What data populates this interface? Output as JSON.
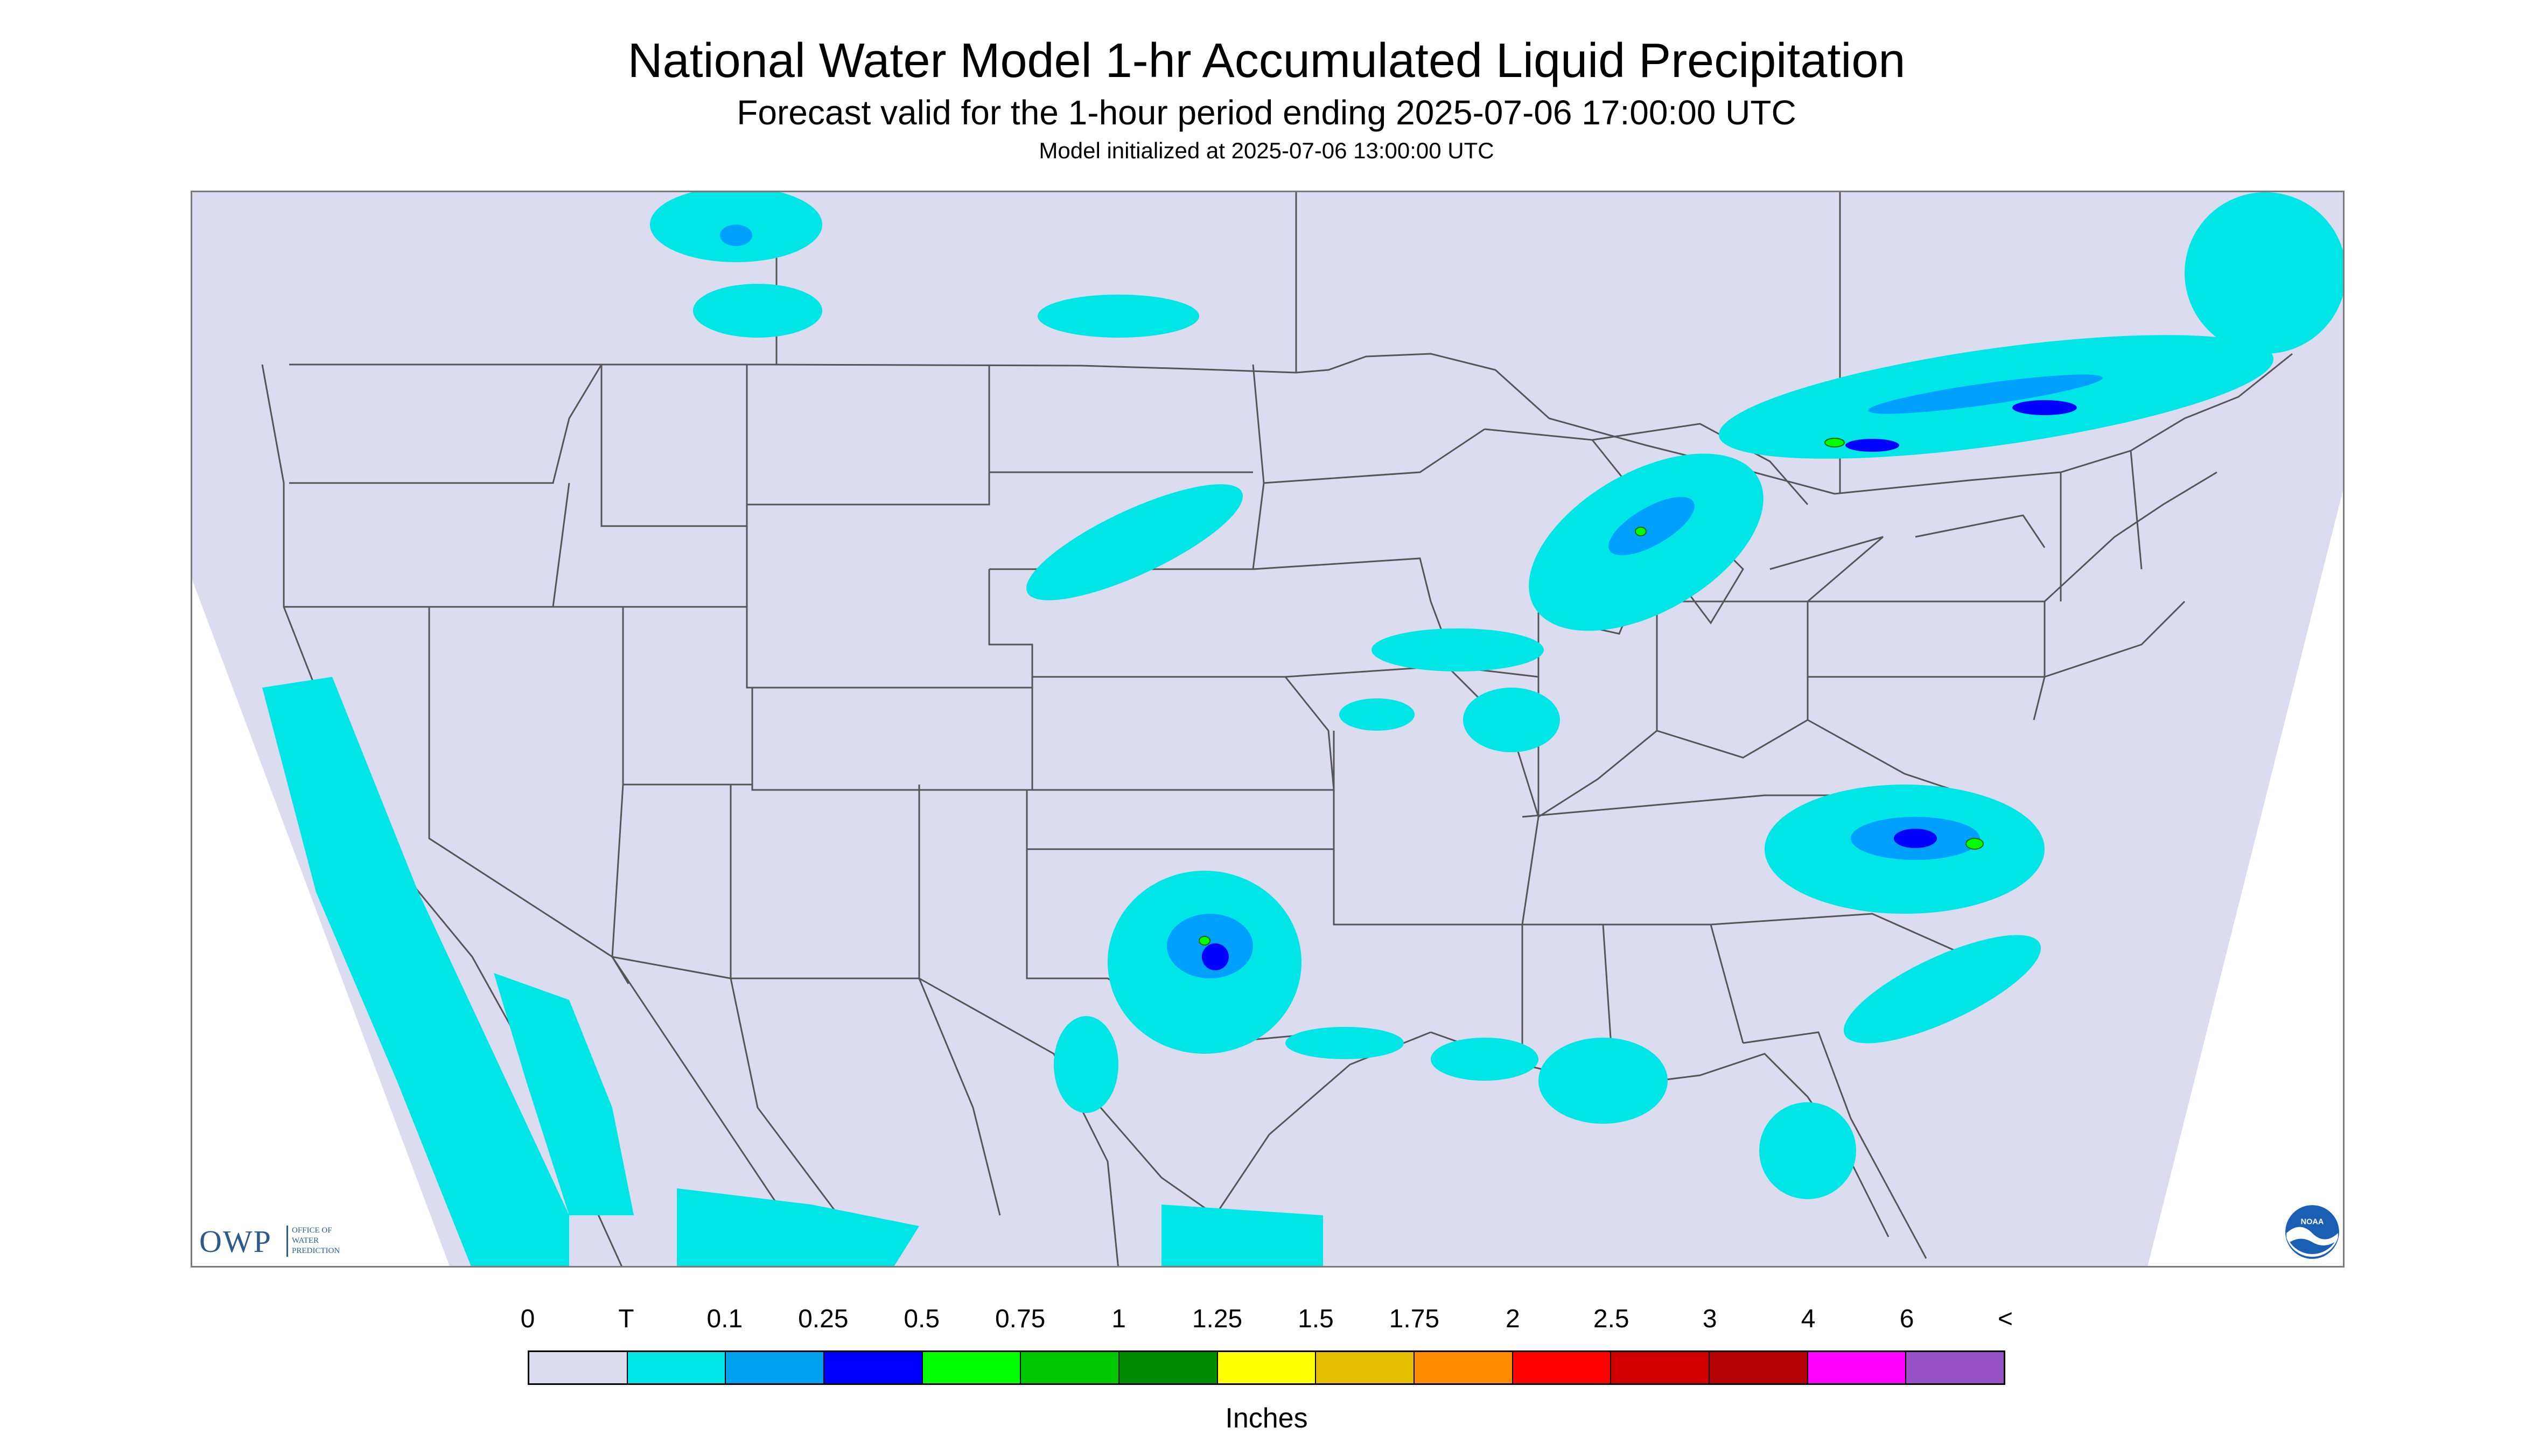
{
  "title": "National Water Model 1-hr Accumulated Liquid Precipitation",
  "subtitle": "Forecast valid for the 1-hour period ending 2025-07-06 17:00:00 UTC",
  "init_line": "Model initialized at 2025-07-06 13:00:00 UTC",
  "map": {
    "projection": "Lambert conformal",
    "background_color": "#dcdcf0",
    "outside_color": "#ffffff",
    "border_color": "#555555",
    "precip_colors": {
      "trace": "#00e5e5",
      "light": "#00a0ff",
      "medium": "#0000ff",
      "heavy": "#00ff00"
    }
  },
  "logos": {
    "owp": {
      "mark": "OWP",
      "lines": [
        "OFFICE OF",
        "WATER",
        "PREDICTION"
      ]
    },
    "noaa": {
      "text": "NOAA"
    }
  },
  "legend": {
    "label": "Inches",
    "ticks": [
      "0",
      "T",
      "0.1",
      "0.25",
      "0.5",
      "0.75",
      "1",
      "1.25",
      "1.5",
      "1.75",
      "2",
      "2.5",
      "3",
      "4",
      "6",
      "<"
    ],
    "colors": [
      "#dcdcf0",
      "#00e5e5",
      "#00a0f0",
      "#0000ff",
      "#00ff00",
      "#00c800",
      "#008c00",
      "#ffff00",
      "#e6be00",
      "#ff8c00",
      "#ff0000",
      "#d20000",
      "#b40000",
      "#ff00ff",
      "#9650c8"
    ]
  }
}
